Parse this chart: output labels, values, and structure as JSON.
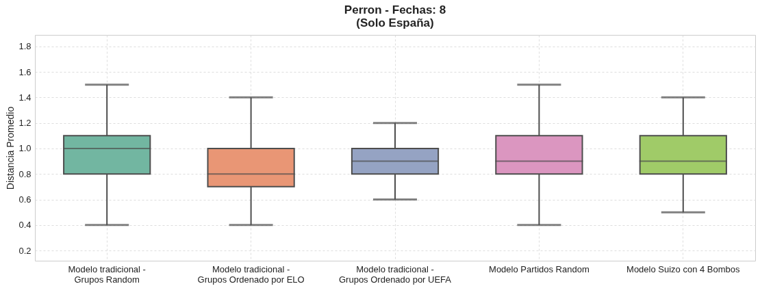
{
  "chart_data": {
    "type": "box",
    "title": "Perron - Fechas: 8\n(Solo España)",
    "ylabel": "Distancia Promedio",
    "categories": [
      "Modelo tradicional -\nGrupos Random",
      "Modelo tradicional -\nGrupos Ordenado por ELO",
      "Modelo tradicional -\nGrupos Ordenado por UEFA",
      "Modelo Partidos Random",
      "Modelo Suizo con 4 Bombos"
    ],
    "boxes": [
      {
        "low": 0.4,
        "q1": 0.8,
        "median": 1.0,
        "q3": 1.1,
        "high": 1.5
      },
      {
        "low": 0.4,
        "q1": 0.7,
        "median": 0.8,
        "q3": 1.0,
        "high": 1.4
      },
      {
        "low": 0.6,
        "q1": 0.8,
        "median": 0.9,
        "q3": 1.0,
        "high": 1.2
      },
      {
        "low": 0.4,
        "q1": 0.8,
        "median": 0.9,
        "q3": 1.1,
        "high": 1.5
      },
      {
        "low": 0.5,
        "q1": 0.8,
        "median": 0.9,
        "q3": 1.1,
        "high": 1.4
      }
    ],
    "colors": [
      "#72b6a1",
      "#e99675",
      "#95a3c3",
      "#db96c0",
      "#a0cb68"
    ],
    "ylim": [
      0.12,
      1.89
    ],
    "yticks": [
      0.2,
      0.4,
      0.6,
      0.8,
      {
        "value": 1,
        "label": "1.0"
      },
      1.2,
      1.4,
      1.6,
      1.8
    ],
    "grid": true,
    "legend": false
  }
}
